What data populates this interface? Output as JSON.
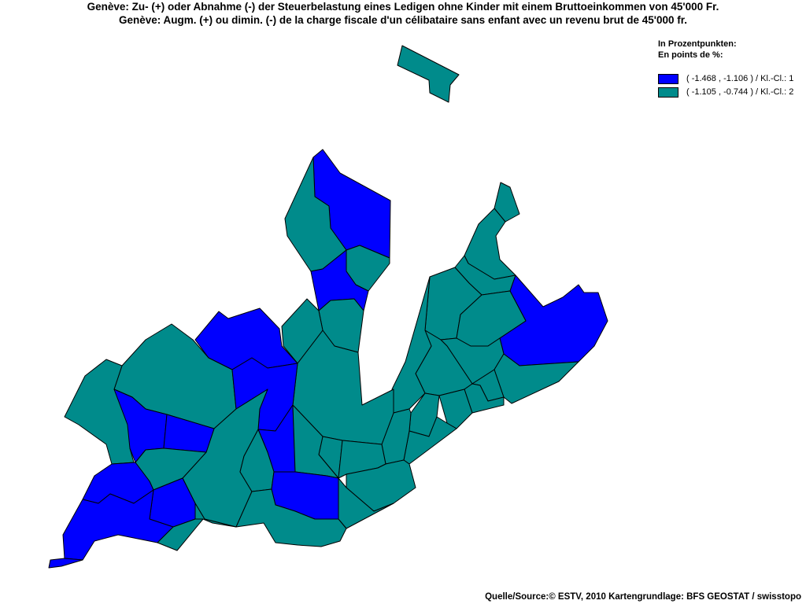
{
  "header": {
    "title_de": "Genève: Zu- (+) oder Abnahme (-) der Steuerbelastung eines Ledigen ohne Kinder mit einem Bruttoeinkommen von 45'000 Fr.",
    "title_fr": "Genève: Augm. (+) ou dimin. (-) de la charge fiscale d'un célibataire sans enfant avec un revenu brut de 45'000 fr."
  },
  "legend": {
    "heading_de": "In Prozentpunkten:",
    "heading_fr": "En points de %:",
    "classes": [
      {
        "label": "( -1.468 , -1.106 ) / Kl.-Cl.: 1",
        "color": "#0000ff"
      },
      {
        "label": "( -1.105 , -0.744 ) / Kl.-Cl.: 2",
        "color": "#008b8b"
      }
    ]
  },
  "map": {
    "colors": {
      "class1": "#0000ff",
      "class2": "#008b8b",
      "border": "#000000"
    }
  },
  "footer": {
    "source": "Quelle/Source:© ESTV, 2010 Kartengrundlage: BFS GEOSTAT / swisstopo"
  }
}
